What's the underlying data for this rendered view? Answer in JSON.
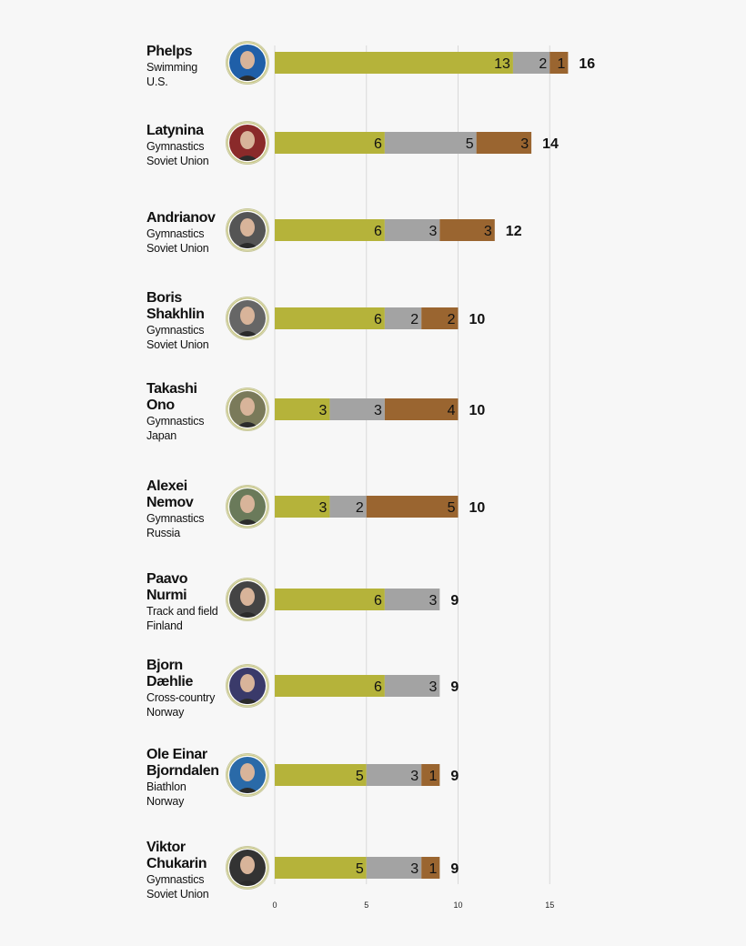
{
  "chart_data": {
    "type": "bar",
    "orientation": "horizontal",
    "stacked": true,
    "categories": [
      "Phelps",
      "Latynina",
      "Andrianov",
      "Boris Shakhlin",
      "Takashi Ono",
      "Alexei Nemov",
      "Paavo Nurmi",
      "Bjorn Dæhlie",
      "Ole Einar Bjorndalen",
      "Viktor Chukarin"
    ],
    "series": [
      {
        "values": [
          13,
          6,
          6,
          6,
          3,
          3,
          6,
          6,
          5,
          5
        ]
      },
      {
        "values": [
          2,
          5,
          3,
          2,
          3,
          2,
          3,
          3,
          3,
          3
        ]
      },
      {
        "values": [
          1,
          3,
          3,
          2,
          4,
          5,
          0,
          0,
          1,
          1
        ]
      }
    ],
    "totals": [
      16,
      14,
      12,
      10,
      10,
      10,
      9,
      9,
      9,
      9
    ],
    "xlim": [
      0,
      17
    ],
    "x_ticks": [
      0,
      5,
      10,
      15
    ],
    "grid": true,
    "colors": {
      "series": [
        "#b5b33a",
        "#a3a3a3",
        "#9a6530"
      ],
      "grid": "#d9d9d9",
      "background": "#f7f7f7"
    }
  },
  "athletes": [
    {
      "name_lines": [
        "Phelps"
      ],
      "meta_lines": [
        "Swimming",
        "U.S."
      ],
      "icon": "swimmer-portrait-icon"
    },
    {
      "name_lines": [
        "Latynina"
      ],
      "meta_lines": [
        "Gymnastics",
        "Soviet Union"
      ],
      "icon": "gymnast-portrait-icon"
    },
    {
      "name_lines": [
        "Andrianov"
      ],
      "meta_lines": [
        "Gymnastics",
        "Soviet Union"
      ],
      "icon": "gymnast-portrait-icon"
    },
    {
      "name_lines": [
        "Boris",
        "Shakhlin"
      ],
      "meta_lines": [
        "Gymnastics",
        "Soviet Union"
      ],
      "icon": "gymnast-portrait-icon"
    },
    {
      "name_lines": [
        "Takashi",
        "Ono"
      ],
      "meta_lines": [
        "Gymnastics",
        "Japan"
      ],
      "icon": "gymnast-portrait-icon"
    },
    {
      "name_lines": [
        "Alexei",
        "Nemov"
      ],
      "meta_lines": [
        "Gymnastics",
        "Russia"
      ],
      "icon": "gymnast-portrait-icon"
    },
    {
      "name_lines": [
        "Paavo",
        "Nurmi"
      ],
      "meta_lines": [
        "Track and field",
        "Finland"
      ],
      "icon": "runner-portrait-icon"
    },
    {
      "name_lines": [
        "Bjorn",
        "Dæhlie"
      ],
      "meta_lines": [
        "Cross-country",
        "Norway"
      ],
      "icon": "skier-portrait-icon"
    },
    {
      "name_lines": [
        "Ole Einar",
        "Bjorndalen"
      ],
      "meta_lines": [
        "Biathlon",
        "Norway"
      ],
      "icon": "biathlete-portrait-icon"
    },
    {
      "name_lines": [
        "Viktor",
        "Chukarin"
      ],
      "meta_lines": [
        "Gymnastics",
        "Soviet Union"
      ],
      "icon": "gymnast-portrait-icon"
    }
  ]
}
